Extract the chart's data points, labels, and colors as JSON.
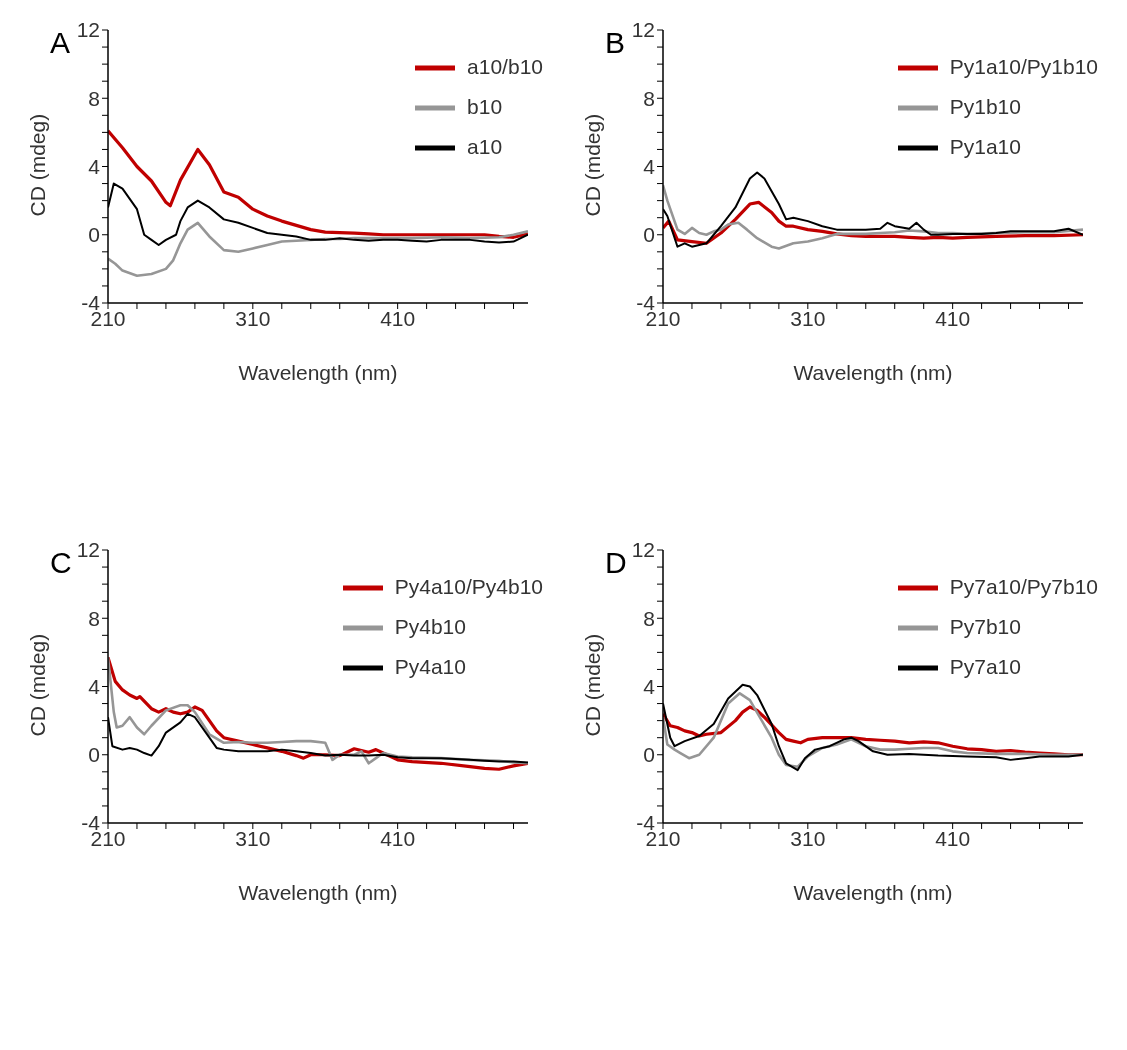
{
  "chart_data": [
    {
      "type": "line",
      "title": "A",
      "xlabel": "Wavelength (nm)",
      "ylabel": "CD (mdeg)",
      "xlim": [
        210,
        500
      ],
      "ylim": [
        -4,
        12
      ],
      "xticks": [
        210,
        {
          "value": 230,
          "label": null
        },
        {
          "value": 250,
          "label": null
        },
        {
          "value": 270,
          "label": null
        },
        {
          "value": 290,
          "label": null
        },
        310,
        {
          "value": 330,
          "label": null
        },
        {
          "value": 350,
          "label": null
        },
        {
          "value": 370,
          "label": null
        },
        {
          "value": 390,
          "label": null
        },
        410,
        {
          "value": 430,
          "label": null
        },
        {
          "value": 450,
          "label": null
        },
        {
          "value": 470,
          "label": null
        },
        {
          "value": 490,
          "label": null
        }
      ],
      "yticks": [
        -4,
        {
          "value": -3,
          "label": null
        },
        {
          "value": -2,
          "label": null
        },
        {
          "value": -1,
          "label": null
        },
        0,
        {
          "value": 1,
          "label": null
        },
        {
          "value": 2,
          "label": null
        },
        {
          "value": 3,
          "label": null
        },
        4,
        {
          "value": 5,
          "label": null
        },
        {
          "value": 6,
          "label": null
        },
        {
          "value": 7,
          "label": null
        },
        8,
        {
          "value": 9,
          "label": null
        },
        {
          "value": 10,
          "label": null
        },
        {
          "value": 11,
          "label": null
        },
        12
      ],
      "legend": "top right",
      "line_style": "solid",
      "marker": "none",
      "series": [
        {
          "name": "a10/b10",
          "color": "#c00000",
          "x": [
            210,
            220,
            230,
            240,
            250,
            253,
            260,
            272,
            280,
            290,
            300,
            310,
            320,
            330,
            340,
            350,
            360,
            370,
            380,
            390,
            400,
            410,
            420,
            440,
            460,
            470,
            480,
            490,
            500
          ],
          "values": [
            6.1,
            5.1,
            4.0,
            3.15,
            1.9,
            1.7,
            3.2,
            5.0,
            4.1,
            2.5,
            2.2,
            1.5,
            1.1,
            0.8,
            0.55,
            0.3,
            0.15,
            0.12,
            0.1,
            0.05,
            0,
            0,
            0,
            0,
            0,
            0,
            -0.1,
            -0.15,
            0.05
          ]
        },
        {
          "name": "b10",
          "color": "#969696",
          "x": [
            210,
            215,
            220,
            230,
            240,
            250,
            255,
            260,
            265,
            272,
            280,
            290,
            300,
            310,
            320,
            330,
            340,
            350,
            360,
            370,
            380,
            400,
            420,
            440,
            460,
            480,
            490,
            500
          ],
          "values": [
            -1.4,
            -1.7,
            -2.1,
            -2.4,
            -2.3,
            -2.0,
            -1.5,
            -0.5,
            0.3,
            0.7,
            -0.1,
            -0.9,
            -1.0,
            -0.8,
            -0.6,
            -0.4,
            -0.35,
            -0.3,
            -0.25,
            -0.25,
            -0.2,
            -0.2,
            -0.2,
            -0.15,
            -0.2,
            -0.15,
            0,
            0.2
          ]
        },
        {
          "name": "a10",
          "color": "#000000",
          "x": [
            210,
            214,
            220,
            230,
            235,
            240,
            245,
            250,
            257,
            260,
            265,
            272,
            280,
            290,
            300,
            310,
            320,
            330,
            340,
            350,
            360,
            370,
            380,
            390,
            400,
            410,
            420,
            430,
            440,
            450,
            460,
            470,
            480,
            490,
            500
          ],
          "values": [
            1.6,
            3.0,
            2.7,
            1.5,
            0,
            -0.3,
            -0.6,
            -0.3,
            0,
            0.8,
            1.6,
            2.0,
            1.6,
            0.9,
            0.7,
            0.4,
            0.1,
            0,
            -0.1,
            -0.3,
            -0.3,
            -0.2,
            -0.3,
            -0.35,
            -0.3,
            -0.3,
            -0.35,
            -0.4,
            -0.3,
            -0.3,
            -0.3,
            -0.4,
            -0.45,
            -0.4,
            0
          ]
        }
      ]
    },
    {
      "type": "line",
      "title": "B",
      "xlabel": "Wavelength (nm)",
      "ylabel": "CD (mdeg)",
      "xlim": [
        210,
        500
      ],
      "ylim": [
        -4,
        12
      ],
      "xticks": [
        210,
        {
          "value": 230,
          "label": null
        },
        {
          "value": 250,
          "label": null
        },
        {
          "value": 270,
          "label": null
        },
        {
          "value": 290,
          "label": null
        },
        310,
        {
          "value": 330,
          "label": null
        },
        {
          "value": 350,
          "label": null
        },
        {
          "value": 370,
          "label": null
        },
        {
          "value": 390,
          "label": null
        },
        410,
        {
          "value": 430,
          "label": null
        },
        {
          "value": 450,
          "label": null
        },
        {
          "value": 470,
          "label": null
        },
        {
          "value": 490,
          "label": null
        }
      ],
      "yticks": [
        -4,
        {
          "value": -3,
          "label": null
        },
        {
          "value": -2,
          "label": null
        },
        {
          "value": -1,
          "label": null
        },
        0,
        {
          "value": 1,
          "label": null
        },
        {
          "value": 2,
          "label": null
        },
        {
          "value": 3,
          "label": null
        },
        4,
        {
          "value": 5,
          "label": null
        },
        {
          "value": 6,
          "label": null
        },
        {
          "value": 7,
          "label": null
        },
        8,
        {
          "value": 9,
          "label": null
        },
        {
          "value": 10,
          "label": null
        },
        {
          "value": 11,
          "label": null
        },
        12
      ],
      "legend": "top right",
      "line_style": "solid",
      "marker": "none",
      "series": [
        {
          "name": "Py1a10/Py1b10",
          "color": "#c00000",
          "x": [
            210,
            214,
            220,
            230,
            240,
            250,
            260,
            270,
            276,
            285,
            290,
            295,
            300,
            310,
            320,
            330,
            340,
            350,
            360,
            370,
            380,
            390,
            400,
            410,
            420,
            440,
            460,
            480,
            500
          ],
          "values": [
            0.4,
            0.8,
            -0.3,
            -0.4,
            -0.5,
            0.1,
            0.9,
            1.8,
            1.9,
            1.3,
            0.8,
            0.5,
            0.5,
            0.3,
            0.2,
            0.05,
            -0.05,
            -0.1,
            -0.1,
            -0.1,
            -0.15,
            -0.2,
            -0.15,
            -0.2,
            -0.15,
            -0.1,
            -0.05,
            -0.05,
            0
          ]
        },
        {
          "name": "Py1b10",
          "color": "#969696",
          "x": [
            210,
            213,
            220,
            225,
            230,
            235,
            240,
            245,
            250,
            255,
            262,
            268,
            275,
            285,
            290,
            300,
            310,
            320,
            330,
            340,
            350,
            360,
            370,
            380,
            390,
            400,
            410,
            420,
            440,
            460,
            480,
            500
          ],
          "values": [
            2.9,
            2.0,
            0.3,
            0.05,
            0.4,
            0.1,
            0,
            0.2,
            0.3,
            0.6,
            0.7,
            0.3,
            -0.2,
            -0.7,
            -0.8,
            -0.5,
            -0.4,
            -0.2,
            0.05,
            0.05,
            0.05,
            0.1,
            0.15,
            0.25,
            0.2,
            0.1,
            0.1,
            0.05,
            0.1,
            0.15,
            0.15,
            0.3
          ]
        },
        {
          "name": "Py1a10",
          "color": "#000000",
          "x": [
            210,
            213,
            220,
            225,
            230,
            240,
            245,
            250,
            260,
            270,
            275,
            280,
            290,
            295,
            300,
            310,
            320,
            330,
            340,
            350,
            360,
            365,
            370,
            380,
            385,
            390,
            395,
            400,
            410,
            420,
            430,
            440,
            450,
            460,
            470,
            480,
            490,
            500
          ],
          "values": [
            1.5,
            1.1,
            -0.7,
            -0.5,
            -0.7,
            -0.5,
            0,
            0.5,
            1.6,
            3.3,
            3.65,
            3.3,
            1.8,
            0.9,
            1.0,
            0.8,
            0.5,
            0.3,
            0.3,
            0.3,
            0.35,
            0.7,
            0.5,
            0.35,
            0.7,
            0.3,
            0,
            0,
            0.05,
            0.05,
            0.05,
            0.1,
            0.2,
            0.2,
            0.2,
            0.2,
            0.35,
            0
          ]
        }
      ]
    },
    {
      "type": "line",
      "title": "C",
      "xlabel": "Wavelength (nm)",
      "ylabel": "CD (mdeg)",
      "xlim": [
        210,
        500
      ],
      "ylim": [
        -4,
        12
      ],
      "xticks": [
        210,
        {
          "value": 230,
          "label": null
        },
        {
          "value": 250,
          "label": null
        },
        {
          "value": 270,
          "label": null
        },
        {
          "value": 290,
          "label": null
        },
        310,
        {
          "value": 330,
          "label": null
        },
        {
          "value": 350,
          "label": null
        },
        {
          "value": 370,
          "label": null
        },
        {
          "value": 390,
          "label": null
        },
        410,
        {
          "value": 430,
          "label": null
        },
        {
          "value": 450,
          "label": null
        },
        {
          "value": 470,
          "label": null
        },
        {
          "value": 490,
          "label": null
        }
      ],
      "yticks": [
        -4,
        {
          "value": -3,
          "label": null
        },
        {
          "value": -2,
          "label": null
        },
        {
          "value": -1,
          "label": null
        },
        0,
        {
          "value": 1,
          "label": null
        },
        {
          "value": 2,
          "label": null
        },
        {
          "value": 3,
          "label": null
        },
        4,
        {
          "value": 5,
          "label": null
        },
        {
          "value": 6,
          "label": null
        },
        {
          "value": 7,
          "label": null
        },
        8,
        {
          "value": 9,
          "label": null
        },
        {
          "value": 10,
          "label": null
        },
        {
          "value": 11,
          "label": null
        },
        12
      ],
      "legend": "top right",
      "line_style": "solid",
      "marker": "none",
      "series": [
        {
          "name": "Py4a10/Py4b10",
          "color": "#c00000",
          "x": [
            210,
            215,
            220,
            225,
            230,
            232,
            240,
            245,
            250,
            255,
            260,
            265,
            270,
            275,
            280,
            285,
            290,
            300,
            310,
            320,
            330,
            340,
            345,
            350,
            360,
            370,
            375,
            380,
            390,
            395,
            400,
            410,
            420,
            440,
            460,
            470,
            480,
            490,
            500
          ],
          "values": [
            5.7,
            4.3,
            3.8,
            3.5,
            3.3,
            3.4,
            2.7,
            2.5,
            2.7,
            2.5,
            2.4,
            2.5,
            2.8,
            2.6,
            2.0,
            1.4,
            1.0,
            0.8,
            0.6,
            0.4,
            0.2,
            -0.05,
            -0.2,
            0,
            0,
            -0.05,
            0.15,
            0.35,
            0.15,
            0.3,
            0.1,
            -0.3,
            -0.4,
            -0.5,
            -0.7,
            -0.8,
            -0.85,
            -0.65,
            -0.5
          ]
        },
        {
          "name": "Py4b10",
          "color": "#969696",
          "x": [
            210,
            214,
            216,
            220,
            225,
            230,
            235,
            240,
            250,
            260,
            265,
            270,
            280,
            290,
            300,
            310,
            320,
            330,
            340,
            350,
            360,
            365,
            370,
            380,
            385,
            390,
            395,
            400,
            410,
            420,
            440,
            460,
            480,
            490,
            500
          ],
          "values": [
            5.7,
            2.5,
            1.6,
            1.7,
            2.2,
            1.6,
            1.2,
            1.7,
            2.6,
            2.9,
            2.9,
            2.5,
            1.2,
            0.7,
            0.75,
            0.7,
            0.7,
            0.75,
            0.8,
            0.8,
            0.7,
            -0.3,
            0,
            0,
            0.2,
            -0.5,
            -0.2,
            0.1,
            -0.1,
            -0.15,
            -0.2,
            -0.3,
            -0.35,
            -0.45,
            -0.5
          ]
        },
        {
          "name": "Py4a10",
          "color": "#000000",
          "x": [
            210,
            213,
            220,
            225,
            230,
            235,
            240,
            245,
            250,
            260,
            265,
            270,
            280,
            285,
            290,
            300,
            310,
            320,
            330,
            340,
            350,
            360,
            370,
            380,
            390,
            400,
            410,
            420,
            440,
            460,
            470,
            480,
            490,
            500
          ],
          "values": [
            2.2,
            0.5,
            0.3,
            0.4,
            0.3,
            0.1,
            -0.05,
            0.5,
            1.3,
            1.9,
            2.4,
            2.2,
            1.0,
            0.4,
            0.3,
            0.2,
            0.2,
            0.2,
            0.3,
            0.2,
            0.1,
            -0.05,
            0,
            -0.05,
            -0.05,
            0,
            -0.15,
            -0.2,
            -0.2,
            -0.3,
            -0.35,
            -0.4,
            -0.4,
            -0.45
          ]
        }
      ]
    },
    {
      "type": "line",
      "title": "D",
      "xlabel": "Wavelength (nm)",
      "ylabel": "CD (mdeg)",
      "xlim": [
        210,
        500
      ],
      "ylim": [
        -4,
        12
      ],
      "xticks": [
        210,
        {
          "value": 230,
          "label": null
        },
        {
          "value": 250,
          "label": null
        },
        {
          "value": 270,
          "label": null
        },
        {
          "value": 290,
          "label": null
        },
        310,
        {
          "value": 330,
          "label": null
        },
        {
          "value": 350,
          "label": null
        },
        {
          "value": 370,
          "label": null
        },
        {
          "value": 390,
          "label": null
        },
        410,
        {
          "value": 430,
          "label": null
        },
        {
          "value": 450,
          "label": null
        },
        {
          "value": 470,
          "label": null
        },
        {
          "value": 490,
          "label": null
        }
      ],
      "yticks": [
        -4,
        {
          "value": -3,
          "label": null
        },
        {
          "value": -2,
          "label": null
        },
        {
          "value": -1,
          "label": null
        },
        0,
        {
          "value": 1,
          "label": null
        },
        {
          "value": 2,
          "label": null
        },
        {
          "value": 3,
          "label": null
        },
        4,
        {
          "value": 5,
          "label": null
        },
        {
          "value": 6,
          "label": null
        },
        {
          "value": 7,
          "label": null
        },
        8,
        {
          "value": 9,
          "label": null
        },
        {
          "value": 10,
          "label": null
        },
        {
          "value": 11,
          "label": null
        },
        12
      ],
      "legend": "top right",
      "line_style": "solid",
      "marker": "none",
      "series": [
        {
          "name": "Py7a10/Py7b10",
          "color": "#c00000",
          "x": [
            210,
            215,
            220,
            225,
            230,
            235,
            240,
            250,
            260,
            265,
            270,
            275,
            280,
            290,
            295,
            300,
            305,
            310,
            320,
            330,
            340,
            350,
            360,
            370,
            380,
            390,
            400,
            410,
            420,
            430,
            440,
            450,
            460,
            470,
            480,
            490,
            500
          ],
          "values": [
            2.4,
            1.7,
            1.6,
            1.4,
            1.3,
            1.1,
            1.2,
            1.3,
            2.0,
            2.5,
            2.8,
            2.6,
            2.2,
            1.3,
            0.9,
            0.8,
            0.7,
            0.9,
            1.0,
            1.0,
            1.0,
            0.9,
            0.85,
            0.8,
            0.7,
            0.75,
            0.7,
            0.5,
            0.35,
            0.3,
            0.2,
            0.25,
            0.15,
            0.1,
            0.05,
            0,
            0
          ]
        },
        {
          "name": "Py7b10",
          "color": "#969696",
          "x": [
            210,
            213,
            218,
            222,
            228,
            235,
            245,
            255,
            263,
            270,
            285,
            290,
            295,
            303,
            310,
            320,
            330,
            340,
            350,
            360,
            370,
            380,
            390,
            400,
            410,
            420,
            440,
            460,
            480,
            500
          ],
          "values": [
            2.2,
            0.6,
            0.3,
            0.1,
            -0.2,
            0,
            1.0,
            3.0,
            3.6,
            3.2,
            1.0,
            0,
            -0.6,
            -0.7,
            -0.1,
            0.4,
            0.6,
            0.9,
            0.5,
            0.3,
            0.3,
            0.35,
            0.4,
            0.4,
            0.2,
            0.1,
            0.05,
            0.05,
            0,
            0
          ]
        },
        {
          "name": "Py7a10",
          "color": "#000000",
          "x": [
            210,
            215,
            218,
            225,
            235,
            245,
            255,
            265,
            270,
            275,
            285,
            290,
            295,
            303,
            308,
            315,
            325,
            335,
            340,
            345,
            355,
            365,
            380,
            390,
            400,
            420,
            440,
            450,
            460,
            470,
            480,
            490,
            500
          ],
          "values": [
            3.0,
            1.0,
            0.5,
            0.8,
            1.1,
            1.8,
            3.3,
            4.1,
            4.0,
            3.5,
            1.8,
            0.5,
            -0.5,
            -0.9,
            -0.2,
            0.3,
            0.5,
            0.9,
            1.0,
            0.8,
            0.2,
            0,
            0.05,
            0,
            -0.05,
            -0.1,
            -0.15,
            -0.3,
            -0.2,
            -0.1,
            -0.1,
            -0.1,
            0
          ]
        }
      ]
    }
  ]
}
